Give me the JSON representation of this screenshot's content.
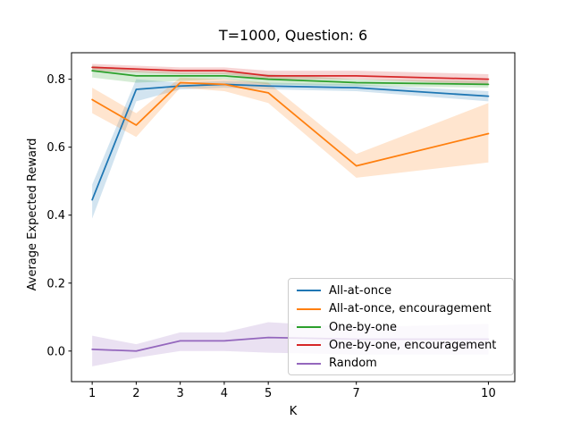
{
  "chart_data": {
    "type": "line",
    "title": "T=1000, Question: 6",
    "xlabel": "K",
    "ylabel": "Average Expected Reward",
    "x": [
      1,
      2,
      3,
      4,
      5,
      7,
      10
    ],
    "xticks": {
      "values": [
        1,
        2,
        3,
        4,
        5,
        7,
        10
      ],
      "labels": [
        "1",
        "2",
        "3",
        "4",
        "5",
        "7",
        "10"
      ]
    },
    "yticks": {
      "values": [
        0.0,
        0.2,
        0.4,
        0.6,
        0.8
      ],
      "labels": [
        "0.0",
        "0.2",
        "0.4",
        "0.6",
        "0.8"
      ]
    },
    "xlim": [
      0.53,
      10.6
    ],
    "ylim": [
      -0.09,
      0.878
    ],
    "grid": false,
    "legend_position": "lower-right-inside",
    "band_opacity": 0.2,
    "axis_color": "#000000",
    "series": [
      {
        "name": "All-at-once",
        "color": "#1f77b4",
        "values": [
          0.445,
          0.77,
          0.78,
          0.785,
          0.78,
          0.775,
          0.75
        ],
        "band_lower": [
          0.39,
          0.735,
          0.77,
          0.775,
          0.77,
          0.765,
          0.735
        ],
        "band_upper": [
          0.49,
          0.8,
          0.79,
          0.795,
          0.79,
          0.785,
          0.765
        ]
      },
      {
        "name": "All-at-once, encouragement",
        "color": "#ff7f0e",
        "values": [
          0.74,
          0.665,
          0.79,
          0.785,
          0.76,
          0.545,
          0.64
        ],
        "band_lower": [
          0.7,
          0.63,
          0.775,
          0.765,
          0.73,
          0.51,
          0.555
        ],
        "band_upper": [
          0.775,
          0.7,
          0.805,
          0.8,
          0.79,
          0.58,
          0.73
        ]
      },
      {
        "name": "One-by-one",
        "color": "#2ca02c",
        "values": [
          0.825,
          0.81,
          0.81,
          0.81,
          0.8,
          0.79,
          0.785
        ],
        "band_lower": [
          0.805,
          0.79,
          0.795,
          0.8,
          0.785,
          0.78,
          0.775
        ],
        "band_upper": [
          0.84,
          0.825,
          0.82,
          0.82,
          0.815,
          0.8,
          0.795
        ]
      },
      {
        "name": "One-by-one, encouragement",
        "color": "#d62728",
        "values": [
          0.835,
          0.83,
          0.825,
          0.825,
          0.81,
          0.81,
          0.8
        ],
        "band_lower": [
          0.825,
          0.82,
          0.815,
          0.815,
          0.8,
          0.8,
          0.785
        ],
        "band_upper": [
          0.845,
          0.84,
          0.835,
          0.835,
          0.825,
          0.825,
          0.815
        ]
      },
      {
        "name": "Random",
        "color": "#9467bd",
        "values": [
          0.005,
          0.0,
          0.03,
          0.03,
          0.04,
          0.035,
          0.035
        ],
        "band_lower": [
          -0.045,
          -0.02,
          0.0,
          0.0,
          -0.005,
          -0.01,
          -0.01
        ],
        "band_upper": [
          0.045,
          0.02,
          0.055,
          0.055,
          0.085,
          0.07,
          0.08
        ]
      }
    ]
  }
}
